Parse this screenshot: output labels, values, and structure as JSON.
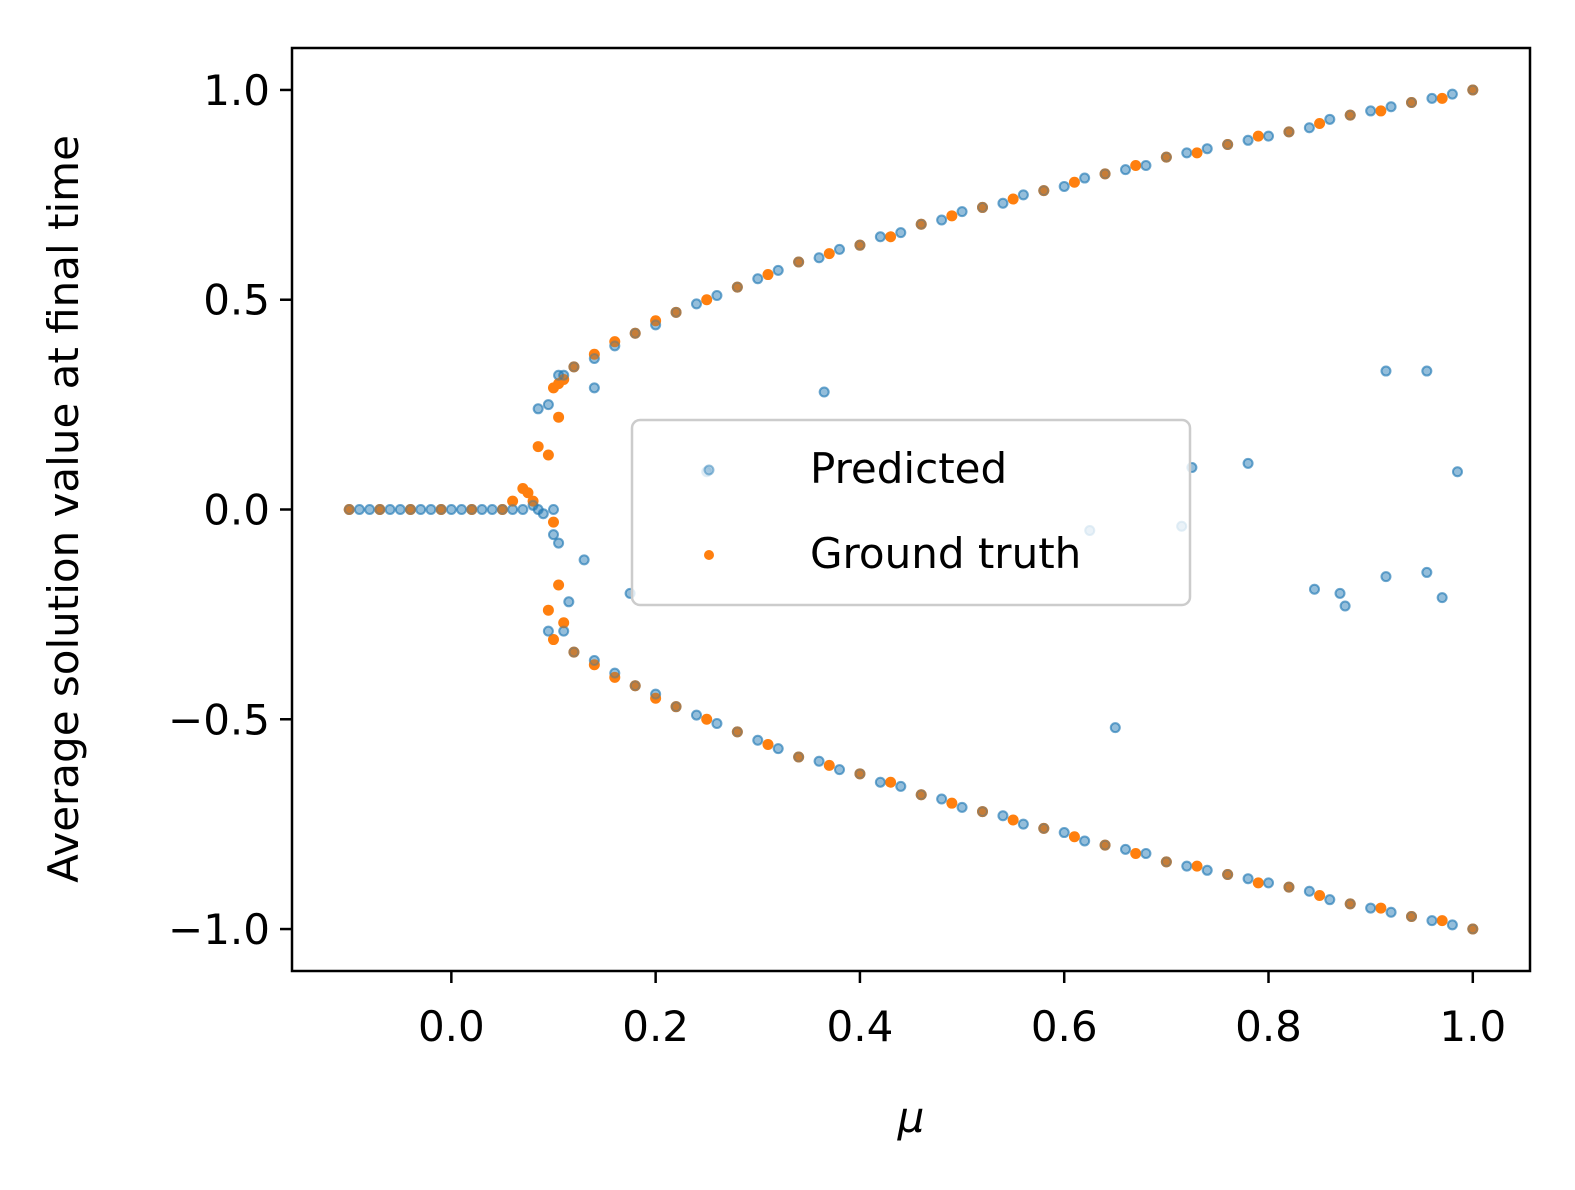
{
  "chart_data": {
    "type": "scatter",
    "xlabel": "μ",
    "ylabel": "Average solution value at final time",
    "xlim": [
      -0.156,
      1.056
    ],
    "ylim": [
      -1.1,
      1.1
    ],
    "xticks": [
      0.0,
      0.2,
      0.4,
      0.6,
      0.8,
      1.0
    ],
    "yticks": [
      -1.0,
      -0.5,
      0.0,
      0.5,
      1.0
    ],
    "xtick_labels": [
      "0.0",
      "0.2",
      "0.4",
      "0.6",
      "0.8",
      "1.0"
    ],
    "ytick_labels": [
      "−1.0",
      "−0.5",
      "0.0",
      "0.5",
      "1.0"
    ],
    "grid": false,
    "legend": {
      "position": "center",
      "entries": [
        "Predicted",
        "Ground truth"
      ]
    },
    "series": [
      {
        "name": "Predicted",
        "color": "#1f77b4",
        "marker": "hollow-circle",
        "points": [
          [
            -0.1,
            0.0
          ],
          [
            -0.09,
            0.0
          ],
          [
            -0.08,
            0.0
          ],
          [
            -0.07,
            0.0
          ],
          [
            -0.06,
            0.0
          ],
          [
            -0.05,
            0.0
          ],
          [
            -0.04,
            0.0
          ],
          [
            -0.03,
            0.0
          ],
          [
            -0.02,
            0.0
          ],
          [
            -0.01,
            0.0
          ],
          [
            0.0,
            0.0
          ],
          [
            0.01,
            0.0
          ],
          [
            0.02,
            0.0
          ],
          [
            0.03,
            0.0
          ],
          [
            0.04,
            0.0
          ],
          [
            0.05,
            0.0
          ],
          [
            0.06,
            0.0
          ],
          [
            0.07,
            0.0
          ],
          [
            0.08,
            0.01
          ],
          [
            0.085,
            0.0
          ],
          [
            0.09,
            -0.01
          ],
          [
            0.085,
            0.24
          ],
          [
            0.095,
            0.25
          ],
          [
            0.1,
            0.0
          ],
          [
            0.1,
            -0.06
          ],
          [
            0.105,
            -0.08
          ],
          [
            0.095,
            -0.29
          ],
          [
            0.11,
            -0.29
          ],
          [
            0.115,
            -0.22
          ],
          [
            0.13,
            -0.12
          ],
          [
            0.14,
            0.29
          ],
          [
            0.175,
            -0.2
          ],
          [
            0.365,
            0.28
          ],
          [
            0.105,
            0.32
          ],
          [
            0.11,
            0.32
          ],
          [
            0.12,
            0.34
          ],
          [
            0.14,
            0.36
          ],
          [
            0.16,
            0.39
          ],
          [
            0.18,
            0.42
          ],
          [
            0.2,
            0.44
          ],
          [
            0.22,
            0.47
          ],
          [
            0.24,
            0.49
          ],
          [
            0.26,
            0.51
          ],
          [
            0.28,
            0.53
          ],
          [
            0.3,
            0.55
          ],
          [
            0.32,
            0.57
          ],
          [
            0.34,
            0.59
          ],
          [
            0.36,
            0.6
          ],
          [
            0.38,
            0.62
          ],
          [
            0.4,
            0.63
          ],
          [
            0.42,
            0.65
          ],
          [
            0.44,
            0.66
          ],
          [
            0.46,
            0.68
          ],
          [
            0.48,
            0.69
          ],
          [
            0.5,
            0.71
          ],
          [
            0.52,
            0.72
          ],
          [
            0.54,
            0.73
          ],
          [
            0.56,
            0.75
          ],
          [
            0.58,
            0.76
          ],
          [
            0.6,
            0.77
          ],
          [
            0.62,
            0.79
          ],
          [
            0.64,
            0.8
          ],
          [
            0.66,
            0.81
          ],
          [
            0.68,
            0.82
          ],
          [
            0.7,
            0.84
          ],
          [
            0.72,
            0.85
          ],
          [
            0.74,
            0.86
          ],
          [
            0.76,
            0.87
          ],
          [
            0.78,
            0.88
          ],
          [
            0.8,
            0.89
          ],
          [
            0.82,
            0.9
          ],
          [
            0.84,
            0.91
          ],
          [
            0.86,
            0.93
          ],
          [
            0.88,
            0.94
          ],
          [
            0.9,
            0.95
          ],
          [
            0.92,
            0.96
          ],
          [
            0.94,
            0.97
          ],
          [
            0.96,
            0.98
          ],
          [
            0.98,
            0.99
          ],
          [
            1.0,
            1.0
          ],
          [
            0.12,
            -0.34
          ],
          [
            0.14,
            -0.36
          ],
          [
            0.16,
            -0.39
          ],
          [
            0.18,
            -0.42
          ],
          [
            0.2,
            -0.44
          ],
          [
            0.22,
            -0.47
          ],
          [
            0.24,
            -0.49
          ],
          [
            0.26,
            -0.51
          ],
          [
            0.28,
            -0.53
          ],
          [
            0.3,
            -0.55
          ],
          [
            0.32,
            -0.57
          ],
          [
            0.34,
            -0.59
          ],
          [
            0.36,
            -0.6
          ],
          [
            0.38,
            -0.62
          ],
          [
            0.4,
            -0.63
          ],
          [
            0.42,
            -0.65
          ],
          [
            0.44,
            -0.66
          ],
          [
            0.46,
            -0.68
          ],
          [
            0.48,
            -0.69
          ],
          [
            0.5,
            -0.71
          ],
          [
            0.52,
            -0.72
          ],
          [
            0.54,
            -0.73
          ],
          [
            0.56,
            -0.75
          ],
          [
            0.58,
            -0.76
          ],
          [
            0.6,
            -0.77
          ],
          [
            0.62,
            -0.79
          ],
          [
            0.64,
            -0.8
          ],
          [
            0.66,
            -0.81
          ],
          [
            0.68,
            -0.82
          ],
          [
            0.7,
            -0.84
          ],
          [
            0.72,
            -0.85
          ],
          [
            0.74,
            -0.86
          ],
          [
            0.76,
            -0.87
          ],
          [
            0.78,
            -0.88
          ],
          [
            0.8,
            -0.89
          ],
          [
            0.82,
            -0.9
          ],
          [
            0.84,
            -0.91
          ],
          [
            0.86,
            -0.93
          ],
          [
            0.88,
            -0.94
          ],
          [
            0.9,
            -0.95
          ],
          [
            0.92,
            -0.96
          ],
          [
            0.94,
            -0.97
          ],
          [
            0.96,
            -0.98
          ],
          [
            0.98,
            -0.99
          ],
          [
            1.0,
            -1.0
          ],
          [
            0.25,
            0.09
          ],
          [
            0.625,
            -0.05
          ],
          [
            0.65,
            -0.52
          ],
          [
            0.715,
            -0.04
          ],
          [
            0.725,
            0.1
          ],
          [
            0.78,
            0.11
          ],
          [
            0.845,
            -0.19
          ],
          [
            0.87,
            -0.2
          ],
          [
            0.875,
            -0.23
          ],
          [
            0.915,
            0.33
          ],
          [
            0.915,
            -0.16
          ],
          [
            0.955,
            0.33
          ],
          [
            0.955,
            -0.15
          ],
          [
            0.97,
            -0.21
          ],
          [
            0.985,
            0.09
          ]
        ]
      },
      {
        "name": "Ground truth",
        "color": "#ff7f0e",
        "marker": "filled-circle",
        "points": [
          [
            -0.1,
            0.0
          ],
          [
            -0.07,
            0.0
          ],
          [
            -0.04,
            0.0
          ],
          [
            -0.01,
            0.0
          ],
          [
            0.02,
            0.0
          ],
          [
            0.05,
            0.0
          ],
          [
            0.06,
            0.02
          ],
          [
            0.07,
            0.05
          ],
          [
            0.075,
            0.04
          ],
          [
            0.08,
            0.02
          ],
          [
            0.085,
            0.15
          ],
          [
            0.095,
            0.13
          ],
          [
            0.1,
            0.29
          ],
          [
            0.105,
            0.3
          ],
          [
            0.105,
            0.22
          ],
          [
            0.1,
            -0.03
          ],
          [
            0.105,
            -0.18
          ],
          [
            0.095,
            -0.24
          ],
          [
            0.11,
            -0.27
          ],
          [
            0.1,
            -0.31
          ],
          [
            0.11,
            0.31
          ],
          [
            0.12,
            0.34
          ],
          [
            0.14,
            0.37
          ],
          [
            0.16,
            0.4
          ],
          [
            0.18,
            0.42
          ],
          [
            0.2,
            0.45
          ],
          [
            0.22,
            0.47
          ],
          [
            0.25,
            0.5
          ],
          [
            0.28,
            0.53
          ],
          [
            0.31,
            0.56
          ],
          [
            0.34,
            0.59
          ],
          [
            0.37,
            0.61
          ],
          [
            0.4,
            0.63
          ],
          [
            0.43,
            0.65
          ],
          [
            0.46,
            0.68
          ],
          [
            0.49,
            0.7
          ],
          [
            0.52,
            0.72
          ],
          [
            0.55,
            0.74
          ],
          [
            0.58,
            0.76
          ],
          [
            0.61,
            0.78
          ],
          [
            0.64,
            0.8
          ],
          [
            0.67,
            0.82
          ],
          [
            0.7,
            0.84
          ],
          [
            0.73,
            0.85
          ],
          [
            0.76,
            0.87
          ],
          [
            0.79,
            0.89
          ],
          [
            0.82,
            0.9
          ],
          [
            0.85,
            0.92
          ],
          [
            0.88,
            0.94
          ],
          [
            0.91,
            0.95
          ],
          [
            0.94,
            0.97
          ],
          [
            0.97,
            0.98
          ],
          [
            1.0,
            1.0
          ],
          [
            0.12,
            -0.34
          ],
          [
            0.14,
            -0.37
          ],
          [
            0.16,
            -0.4
          ],
          [
            0.18,
            -0.42
          ],
          [
            0.2,
            -0.45
          ],
          [
            0.22,
            -0.47
          ],
          [
            0.25,
            -0.5
          ],
          [
            0.28,
            -0.53
          ],
          [
            0.31,
            -0.56
          ],
          [
            0.34,
            -0.59
          ],
          [
            0.37,
            -0.61
          ],
          [
            0.4,
            -0.63
          ],
          [
            0.43,
            -0.65
          ],
          [
            0.46,
            -0.68
          ],
          [
            0.49,
            -0.7
          ],
          [
            0.52,
            -0.72
          ],
          [
            0.55,
            -0.74
          ],
          [
            0.58,
            -0.76
          ],
          [
            0.61,
            -0.78
          ],
          [
            0.64,
            -0.8
          ],
          [
            0.67,
            -0.82
          ],
          [
            0.7,
            -0.84
          ],
          [
            0.73,
            -0.85
          ],
          [
            0.76,
            -0.87
          ],
          [
            0.79,
            -0.89
          ],
          [
            0.82,
            -0.9
          ],
          [
            0.85,
            -0.92
          ],
          [
            0.88,
            -0.94
          ],
          [
            0.91,
            -0.95
          ],
          [
            0.94,
            -0.97
          ],
          [
            0.97,
            -0.98
          ],
          [
            1.0,
            -1.0
          ]
        ]
      }
    ]
  }
}
